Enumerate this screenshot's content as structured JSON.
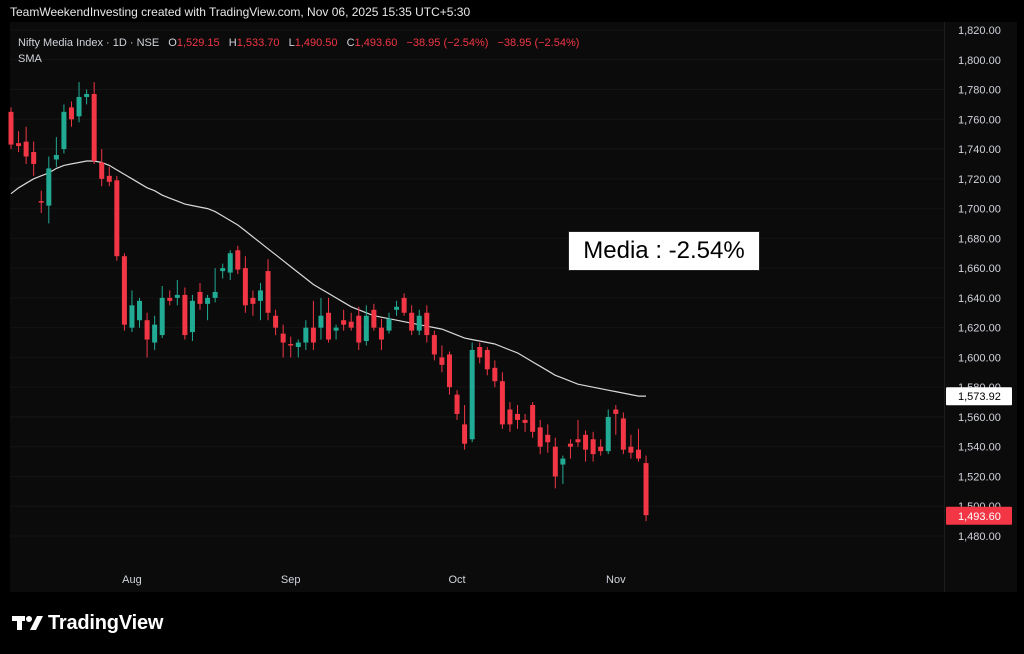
{
  "header": {
    "credit": "TeamWeekendInvesting created with TradingView.com, Nov 06, 2025 15:35 UTC+5:30"
  },
  "legend": {
    "symbol": "Nifty Media Index · 1D · NSE",
    "open_label": "O",
    "open": "1,529.15",
    "high_label": "H",
    "high": "1,533.70",
    "low_label": "L",
    "low": "1,490.50",
    "close_label": "C",
    "close": "1,493.60",
    "change": "−38.95 (−2.54%)",
    "change2": "−38.95 (−2.54%)",
    "sma_label": "SMA"
  },
  "annotation": {
    "text": "Media : -2.54%"
  },
  "brand": {
    "name": "TradingView",
    "logo_icon": "tradingview-logo-icon"
  },
  "colors": {
    "up": "#22ab94",
    "down": "#f23645",
    "sma": "#d9d9d9",
    "background": "#0b0b0b",
    "page": "#000000",
    "grid": "#141414",
    "axis_text": "#d1d4dc"
  },
  "chart_data": {
    "type": "candlestick",
    "x_ticks": [
      {
        "label": "Aug",
        "index": 16
      },
      {
        "label": "Sep",
        "index": 37
      },
      {
        "label": "Oct",
        "index": 59
      },
      {
        "label": "Nov",
        "index": 80
      }
    ],
    "y_ticks": [
      {
        "value": 1820,
        "label": "1,820.00"
      },
      {
        "value": 1800,
        "label": "1,800.00"
      },
      {
        "value": 1780,
        "label": "1,780.00"
      },
      {
        "value": 1760,
        "label": "1,760.00"
      },
      {
        "value": 1740,
        "label": "1,740.00"
      },
      {
        "value": 1720,
        "label": "1,720.00"
      },
      {
        "value": 1700,
        "label": "1,700.00"
      },
      {
        "value": 1680,
        "label": "1,680.00"
      },
      {
        "value": 1660,
        "label": "1,660.00"
      },
      {
        "value": 1640,
        "label": "1,640.00"
      },
      {
        "value": 1620,
        "label": "1,620.00"
      },
      {
        "value": 1600,
        "label": "1,600.00"
      },
      {
        "value": 1580,
        "label": "1,580.00"
      },
      {
        "value": 1560,
        "label": "1,560.00"
      },
      {
        "value": 1540,
        "label": "1,540.00"
      },
      {
        "value": 1520,
        "label": "1,520.00"
      },
      {
        "value": 1500,
        "label": "1,500.00"
      },
      {
        "value": 1480,
        "label": "1,480.00"
      }
    ],
    "ylim": [
      1460,
      1835
    ],
    "price_labels": [
      {
        "value": 1573.92,
        "label": "1,573.92",
        "kind": "sma"
      },
      {
        "value": 1493.6,
        "label": "1,493.60",
        "kind": "last"
      }
    ],
    "candles": [
      {
        "o": 1765,
        "h": 1768,
        "l": 1740,
        "c": 1743
      },
      {
        "o": 1744,
        "h": 1752,
        "l": 1738,
        "c": 1742
      },
      {
        "o": 1745,
        "h": 1755,
        "l": 1730,
        "c": 1735
      },
      {
        "o": 1738,
        "h": 1745,
        "l": 1722,
        "c": 1730
      },
      {
        "o": 1705,
        "h": 1712,
        "l": 1697,
        "c": 1704
      },
      {
        "o": 1702,
        "h": 1735,
        "l": 1690,
        "c": 1727
      },
      {
        "o": 1733,
        "h": 1748,
        "l": 1728,
        "c": 1736
      },
      {
        "o": 1740,
        "h": 1770,
        "l": 1737,
        "c": 1765
      },
      {
        "o": 1768,
        "h": 1772,
        "l": 1755,
        "c": 1760
      },
      {
        "o": 1762,
        "h": 1785,
        "l": 1758,
        "c": 1775
      },
      {
        "o": 1775,
        "h": 1780,
        "l": 1770,
        "c": 1777
      },
      {
        "o": 1777,
        "h": 1785,
        "l": 1730,
        "c": 1732
      },
      {
        "o": 1731,
        "h": 1740,
        "l": 1715,
        "c": 1720
      },
      {
        "o": 1722,
        "h": 1728,
        "l": 1715,
        "c": 1718
      },
      {
        "o": 1719,
        "h": 1722,
        "l": 1665,
        "c": 1668
      },
      {
        "o": 1668,
        "h": 1670,
        "l": 1618,
        "c": 1622
      },
      {
        "o": 1620,
        "h": 1645,
        "l": 1617,
        "c": 1635
      },
      {
        "o": 1625,
        "h": 1640,
        "l": 1620,
        "c": 1638
      },
      {
        "o": 1625,
        "h": 1630,
        "l": 1600,
        "c": 1612
      },
      {
        "o": 1610,
        "h": 1628,
        "l": 1605,
        "c": 1622
      },
      {
        "o": 1615,
        "h": 1648,
        "l": 1613,
        "c": 1640
      },
      {
        "o": 1640,
        "h": 1645,
        "l": 1635,
        "c": 1638
      },
      {
        "o": 1640,
        "h": 1652,
        "l": 1635,
        "c": 1642
      },
      {
        "o": 1642,
        "h": 1647,
        "l": 1612,
        "c": 1615
      },
      {
        "o": 1617,
        "h": 1642,
        "l": 1611,
        "c": 1638
      },
      {
        "o": 1644,
        "h": 1650,
        "l": 1632,
        "c": 1636
      },
      {
        "o": 1636,
        "h": 1642,
        "l": 1625,
        "c": 1640
      },
      {
        "o": 1640,
        "h": 1660,
        "l": 1637,
        "c": 1644
      },
      {
        "o": 1658,
        "h": 1663,
        "l": 1653,
        "c": 1660
      },
      {
        "o": 1657,
        "h": 1672,
        "l": 1652,
        "c": 1670
      },
      {
        "o": 1672,
        "h": 1675,
        "l": 1656,
        "c": 1659
      },
      {
        "o": 1660,
        "h": 1668,
        "l": 1630,
        "c": 1635
      },
      {
        "o": 1640,
        "h": 1645,
        "l": 1628,
        "c": 1636
      },
      {
        "o": 1638,
        "h": 1650,
        "l": 1625,
        "c": 1645
      },
      {
        "o": 1658,
        "h": 1666,
        "l": 1625,
        "c": 1630
      },
      {
        "o": 1628,
        "h": 1632,
        "l": 1615,
        "c": 1620
      },
      {
        "o": 1616,
        "h": 1622,
        "l": 1600,
        "c": 1610
      },
      {
        "o": 1609,
        "h": 1614,
        "l": 1600,
        "c": 1608
      },
      {
        "o": 1607,
        "h": 1612,
        "l": 1600,
        "c": 1610
      },
      {
        "o": 1610,
        "h": 1625,
        "l": 1605,
        "c": 1620
      },
      {
        "o": 1620,
        "h": 1638,
        "l": 1605,
        "c": 1610
      },
      {
        "o": 1620,
        "h": 1640,
        "l": 1612,
        "c": 1628
      },
      {
        "o": 1630,
        "h": 1640,
        "l": 1610,
        "c": 1612
      },
      {
        "o": 1618,
        "h": 1622,
        "l": 1612,
        "c": 1620
      },
      {
        "o": 1625,
        "h": 1632,
        "l": 1618,
        "c": 1622
      },
      {
        "o": 1624,
        "h": 1630,
        "l": 1618,
        "c": 1620
      },
      {
        "o": 1628,
        "h": 1634,
        "l": 1605,
        "c": 1610
      },
      {
        "o": 1611,
        "h": 1635,
        "l": 1608,
        "c": 1628
      },
      {
        "o": 1632,
        "h": 1636,
        "l": 1618,
        "c": 1620
      },
      {
        "o": 1620,
        "h": 1626,
        "l": 1605,
        "c": 1612
      },
      {
        "o": 1618,
        "h": 1630,
        "l": 1616,
        "c": 1626
      },
      {
        "o": 1632,
        "h": 1638,
        "l": 1628,
        "c": 1634
      },
      {
        "o": 1640,
        "h": 1643,
        "l": 1628,
        "c": 1630
      },
      {
        "o": 1630,
        "h": 1635,
        "l": 1615,
        "c": 1618
      },
      {
        "o": 1618,
        "h": 1632,
        "l": 1615,
        "c": 1628
      },
      {
        "o": 1630,
        "h": 1635,
        "l": 1610,
        "c": 1615
      },
      {
        "o": 1615,
        "h": 1618,
        "l": 1598,
        "c": 1602
      },
      {
        "o": 1600,
        "h": 1608,
        "l": 1590,
        "c": 1595
      },
      {
        "o": 1602,
        "h": 1604,
        "l": 1575,
        "c": 1580
      },
      {
        "o": 1575,
        "h": 1578,
        "l": 1558,
        "c": 1562
      },
      {
        "o": 1555,
        "h": 1568,
        "l": 1538,
        "c": 1542
      },
      {
        "o": 1545,
        "h": 1610,
        "l": 1543,
        "c": 1605
      },
      {
        "o": 1607,
        "h": 1610,
        "l": 1596,
        "c": 1600
      },
      {
        "o": 1605,
        "h": 1607,
        "l": 1588,
        "c": 1592
      },
      {
        "o": 1593,
        "h": 1598,
        "l": 1580,
        "c": 1584
      },
      {
        "o": 1584,
        "h": 1590,
        "l": 1552,
        "c": 1555
      },
      {
        "o": 1565,
        "h": 1570,
        "l": 1550,
        "c": 1555
      },
      {
        "o": 1562,
        "h": 1568,
        "l": 1552,
        "c": 1558
      },
      {
        "o": 1558,
        "h": 1562,
        "l": 1550,
        "c": 1556
      },
      {
        "o": 1568,
        "h": 1570,
        "l": 1546,
        "c": 1550
      },
      {
        "o": 1553,
        "h": 1558,
        "l": 1535,
        "c": 1540
      },
      {
        "o": 1548,
        "h": 1555,
        "l": 1536,
        "c": 1543
      },
      {
        "o": 1540,
        "h": 1546,
        "l": 1512,
        "c": 1520
      },
      {
        "o": 1528,
        "h": 1534,
        "l": 1515,
        "c": 1532
      },
      {
        "o": 1542,
        "h": 1545,
        "l": 1532,
        "c": 1540
      },
      {
        "o": 1545,
        "h": 1558,
        "l": 1540,
        "c": 1543
      },
      {
        "o": 1548,
        "h": 1551,
        "l": 1530,
        "c": 1538
      },
      {
        "o": 1545,
        "h": 1550,
        "l": 1530,
        "c": 1535
      },
      {
        "o": 1540,
        "h": 1545,
        "l": 1534,
        "c": 1537
      },
      {
        "o": 1537,
        "h": 1565,
        "l": 1535,
        "c": 1560
      },
      {
        "o": 1565,
        "h": 1568,
        "l": 1548,
        "c": 1562
      },
      {
        "o": 1559,
        "h": 1563,
        "l": 1535,
        "c": 1538
      },
      {
        "o": 1540,
        "h": 1548,
        "l": 1532,
        "c": 1536
      },
      {
        "o": 1538,
        "h": 1552,
        "l": 1530,
        "c": 1532
      },
      {
        "o": 1529,
        "h": 1534,
        "l": 1490,
        "c": 1494
      }
    ],
    "sma": [
      1710,
      1714,
      1717,
      1720,
      1722,
      1724,
      1727,
      1729,
      1730,
      1731,
      1732,
      1732,
      1731,
      1729,
      1726,
      1723,
      1720,
      1717,
      1714,
      1712,
      1709,
      1707,
      1705,
      1703,
      1702,
      1701,
      1700,
      1698,
      1695,
      1692,
      1689,
      1685,
      1681,
      1677,
      1673,
      1669,
      1665,
      1661,
      1657,
      1653,
      1649,
      1646,
      1643,
      1640,
      1637,
      1634,
      1632,
      1630,
      1628,
      1627,
      1626,
      1625,
      1624,
      1623,
      1622,
      1621,
      1620,
      1619,
      1617,
      1615,
      1613,
      1612,
      1611,
      1610,
      1609,
      1607,
      1605,
      1603,
      1600,
      1597,
      1594,
      1591,
      1588,
      1586,
      1584,
      1582,
      1581,
      1580,
      1579,
      1578,
      1577,
      1576,
      1575,
      1574,
      1574
    ]
  }
}
